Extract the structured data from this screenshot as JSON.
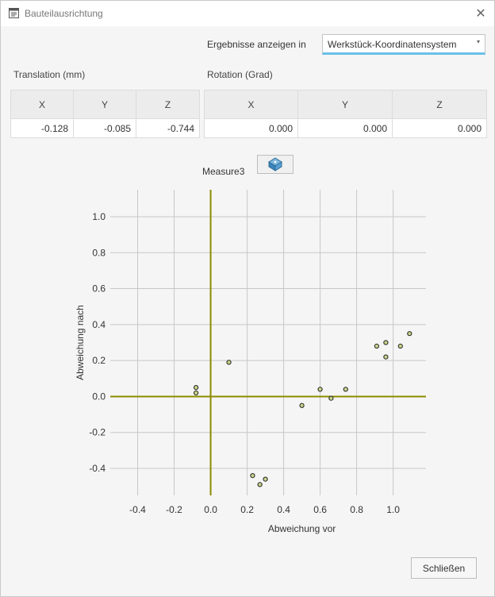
{
  "window": {
    "title": "Bauteilausrichtung",
    "close_glyph": "✕"
  },
  "results": {
    "label": "Ergebnisse anzeigen in",
    "selected": "Werkstück-Koordinatensystem",
    "arrow": "▾"
  },
  "translation": {
    "label": "Translation (mm)",
    "headers": [
      "X",
      "Y",
      "Z"
    ],
    "values": [
      "-0.128",
      "-0.085",
      "-0.744"
    ]
  },
  "rotation": {
    "label": "Rotation (Grad)",
    "headers": [
      "X",
      "Y",
      "Z"
    ],
    "values": [
      "0.000",
      "0.000",
      "0.000"
    ]
  },
  "measure": {
    "label": "Measure3",
    "icon": "measure-icon"
  },
  "chart_data": {
    "type": "scatter",
    "title": "",
    "xlabel": "Abweichung vor",
    "ylabel": "Abweichung nach",
    "xlim": [
      -0.55,
      1.18
    ],
    "ylim": [
      -0.55,
      1.15
    ],
    "xticks": [
      -0.4,
      -0.2,
      0.0,
      0.2,
      0.4,
      0.6,
      0.8,
      1.0
    ],
    "yticks": [
      -0.4,
      -0.2,
      0.0,
      0.2,
      0.4,
      0.6,
      0.8,
      1.0
    ],
    "grid": true,
    "axis_line_color": "#8b8b00",
    "point_color": "#c8d48a",
    "points": [
      {
        "x": -0.08,
        "y": 0.05
      },
      {
        "x": -0.08,
        "y": 0.02
      },
      {
        "x": 0.1,
        "y": 0.19
      },
      {
        "x": 0.23,
        "y": -0.44
      },
      {
        "x": 0.27,
        "y": -0.49
      },
      {
        "x": 0.3,
        "y": -0.46
      },
      {
        "x": 0.5,
        "y": -0.05
      },
      {
        "x": 0.6,
        "y": 0.04
      },
      {
        "x": 0.66,
        "y": -0.01
      },
      {
        "x": 0.74,
        "y": 0.04
      },
      {
        "x": 0.91,
        "y": 0.28
      },
      {
        "x": 0.96,
        "y": 0.3
      },
      {
        "x": 0.96,
        "y": 0.22
      },
      {
        "x": 1.04,
        "y": 0.28
      },
      {
        "x": 1.09,
        "y": 0.35
      }
    ]
  },
  "footer": {
    "close_label": "Schließen"
  }
}
